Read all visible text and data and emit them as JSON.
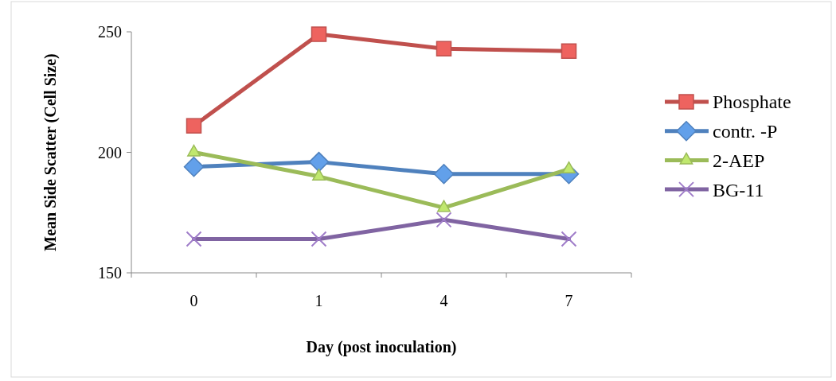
{
  "chart_data": {
    "type": "line",
    "xlabel": "Day (post inoculation)",
    "ylabel": "Mean Side Scatter (Cell Size)",
    "categories": [
      "0",
      "1",
      "4",
      "7"
    ],
    "ylim": [
      150,
      250
    ],
    "yticks": [
      150,
      200,
      250
    ],
    "grid": false,
    "legend": "right",
    "series": [
      {
        "name": "Phosphate",
        "color": "#c0504d",
        "marker": "square",
        "values": [
          211,
          249,
          243,
          242
        ]
      },
      {
        "name": "contr. -P",
        "color": "#4f81bd",
        "marker": "diamond",
        "values": [
          194,
          196,
          191,
          191
        ]
      },
      {
        "name": "2-AEP",
        "color": "#9bbb59",
        "marker": "triangle",
        "values": [
          200,
          190,
          177,
          193
        ]
      },
      {
        "name": "BG-11",
        "color": "#8064a2",
        "marker": "cross",
        "values": [
          164,
          164,
          172,
          164
        ]
      }
    ]
  }
}
